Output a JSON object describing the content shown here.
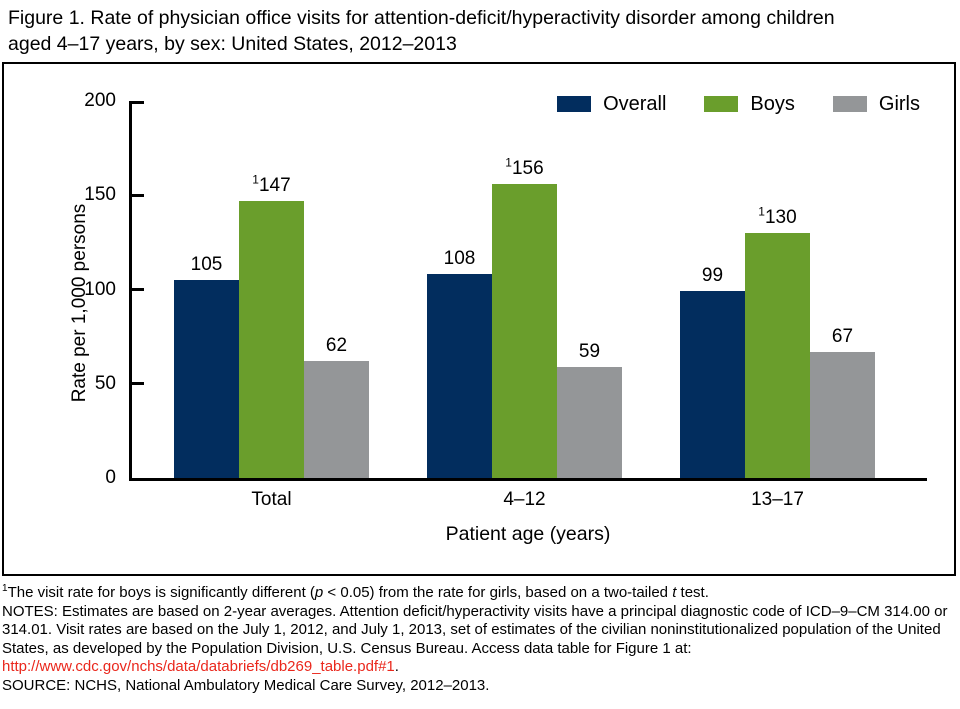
{
  "title": {
    "line1": "Figure 1. Rate of physician office visits for attention-deficit/hyperactivity disorder among children",
    "line2": "aged 4–17 years, by sex: United States, 2012–2013"
  },
  "chart_data": {
    "type": "bar",
    "categories": [
      "Total",
      "4–12",
      "13–17"
    ],
    "series": [
      {
        "name": "Overall",
        "color": "#022d5e",
        "values": [
          105,
          108,
          99
        ],
        "sup_markers": [
          "",
          "",
          ""
        ]
      },
      {
        "name": "Boys",
        "color": "#6a9e2c",
        "values": [
          147,
          156,
          130
        ],
        "sup_markers": [
          "1",
          "1",
          "1"
        ]
      },
      {
        "name": "Girls",
        "color": "#949698",
        "values": [
          62,
          59,
          67
        ],
        "sup_markers": [
          "",
          "",
          ""
        ]
      }
    ],
    "xlabel": "Patient age (years)",
    "ylabel": "Rate per 1,000 persons",
    "ylim": [
      0,
      200
    ],
    "yticks": [
      0,
      50,
      100,
      150,
      200
    ],
    "grid": false,
    "legend_position": "top-right",
    "value_labels": true
  },
  "footnotes": {
    "note1": {
      "sup": "1",
      "t1": "The visit rate for boys is significantly different (",
      "i1": "p",
      "t2": " < 0.05) from the rate for girls, based on a two-tailed ",
      "i2": "t",
      "t3": " test."
    },
    "notes": {
      "t1": "NOTES: Estimates are based on 2-year averages. Attention deficit/hyperactivity visits have a principal diagnostic code of ICD–9–CM 314.00 or 314.01. Visit rates are based on the July 1, 2012, and July 1, 2013, set of estimates of the civilian noninstitutionalized population of the United States, as developed by the Population Division, U.S. Census Bureau. Access data table for Figure 1 at: ",
      "link": "http://www.cdc.gov/nchs/data/databriefs/db269_table.pdf#1",
      "t2": "."
    },
    "source": "SOURCE: NCHS, National Ambulatory Medical Care Survey, 2012–2013."
  },
  "colors": {
    "link_red": "#ea271c",
    "axis_black": "#000000"
  }
}
